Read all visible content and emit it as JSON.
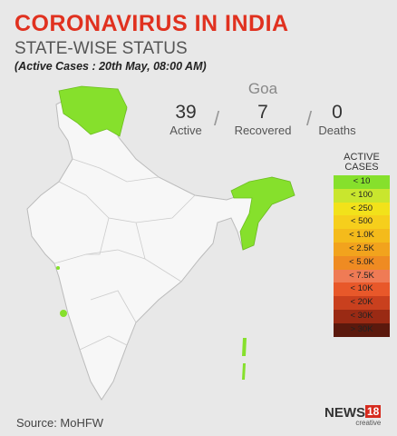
{
  "header": {
    "title": "CORONAVIRUS IN INDIA",
    "subtitle": "STATE-WISE STATUS",
    "note": "(Active Cases : 20th May, 08:00 AM)"
  },
  "state": {
    "name": "Goa",
    "stats": [
      {
        "value": "39",
        "label": "Active"
      },
      {
        "value": "7",
        "label": "Recovered"
      },
      {
        "value": "0",
        "label": "Deaths"
      }
    ]
  },
  "legend": {
    "title": "ACTIVE CASES",
    "items": [
      {
        "label": "< 10",
        "color": "#86e02c"
      },
      {
        "label": "< 100",
        "color": "#c9e62e"
      },
      {
        "label": "< 250",
        "color": "#f2e21a"
      },
      {
        "label": "< 500",
        "color": "#f6cf1c"
      },
      {
        "label": "< 1.0K",
        "color": "#f4bb1b"
      },
      {
        "label": "< 2.5K",
        "color": "#f2a31d"
      },
      {
        "label": "< 5.0K",
        "color": "#ef8b22"
      },
      {
        "label": "< 7.5K",
        "color": "#ef7b55"
      },
      {
        "label": "< 10K",
        "color": "#e8582a"
      },
      {
        "label": "< 20K",
        "color": "#c9401e"
      },
      {
        "label": "< 30K",
        "color": "#9a2a14"
      },
      {
        "label": "> 30K",
        "color": "#5b190d"
      }
    ]
  },
  "source": "Source: MoHFW",
  "logo": {
    "name": "NEWS",
    "number": "18",
    "tag": "creative"
  }
}
